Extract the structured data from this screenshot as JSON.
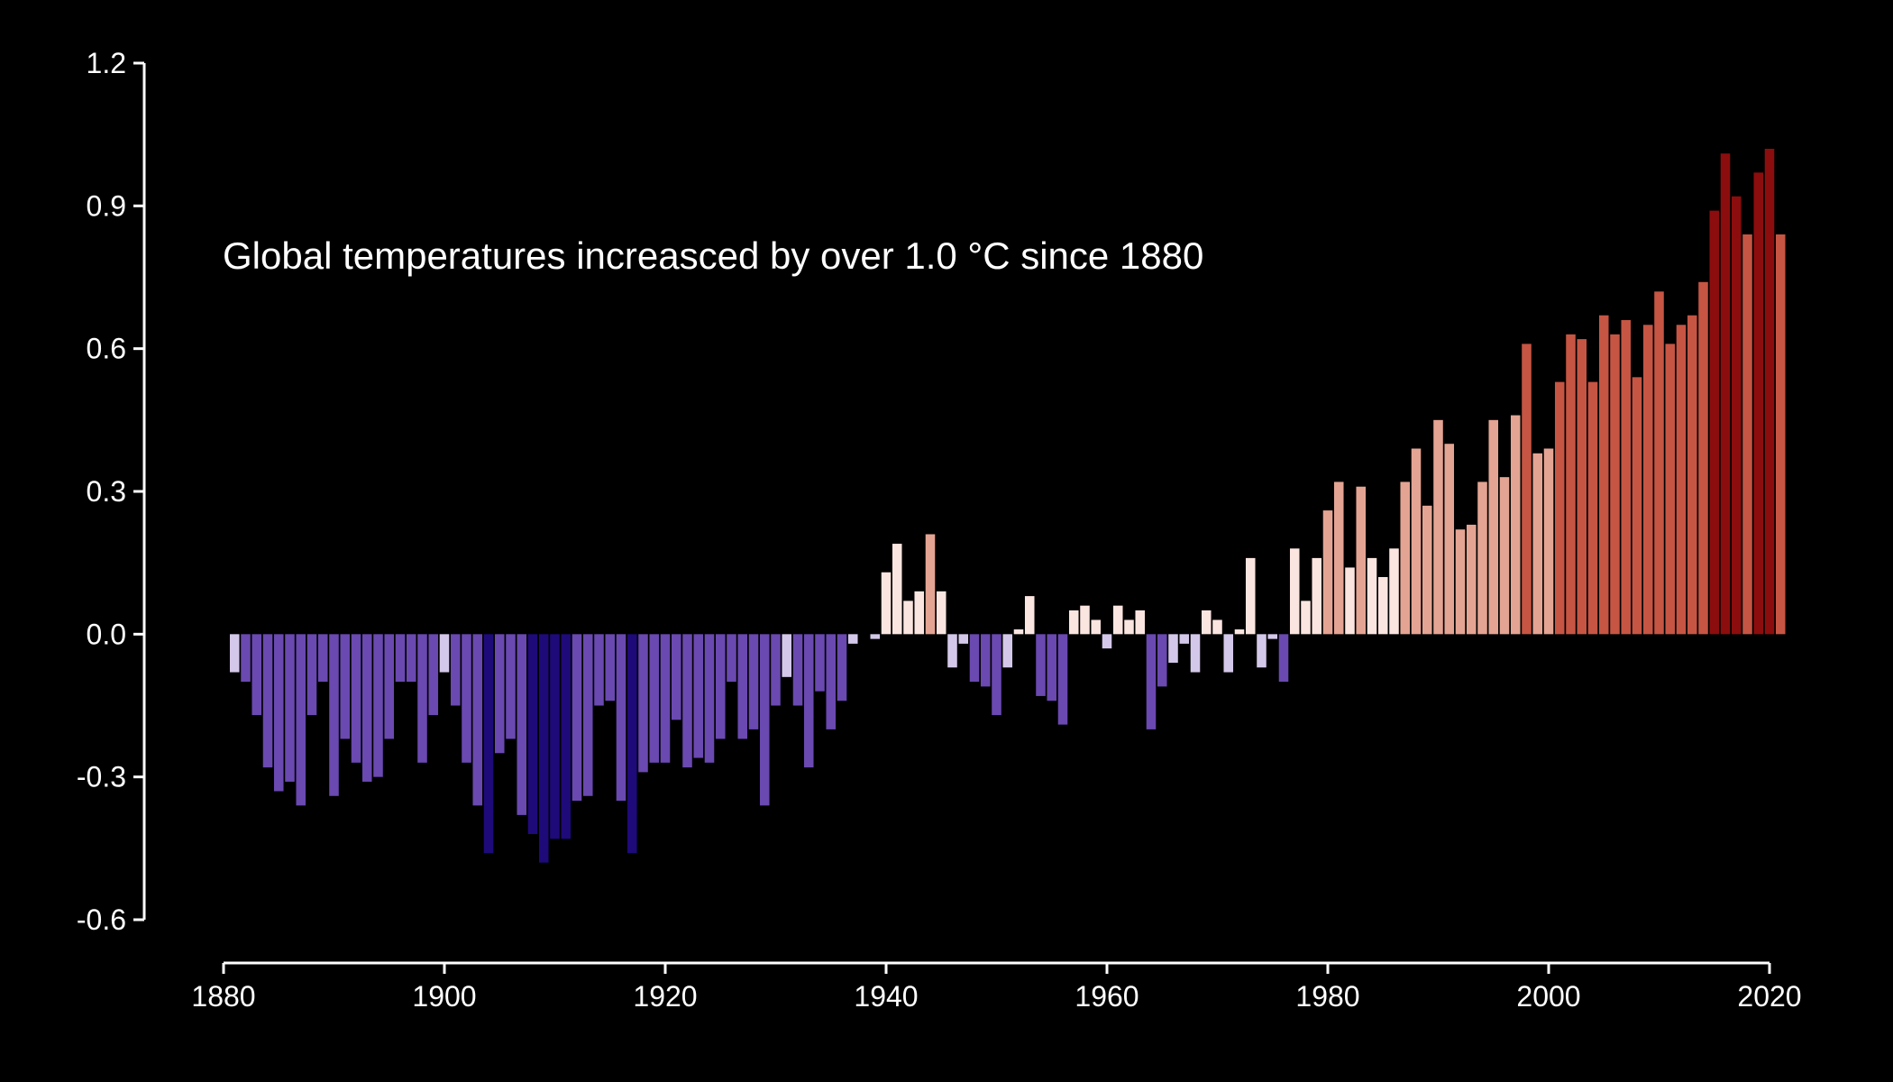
{
  "chart_data": {
    "type": "bar",
    "title": "",
    "xlabel": "",
    "ylabel": "",
    "annotation": "Global temperatures increasced by over 1.0 °C since 1880",
    "xlim": [
      1880,
      2020
    ],
    "ylim": [
      -0.6,
      1.2
    ],
    "xticks": [
      "1880",
      "1900",
      "1920",
      "1940",
      "1960",
      "1980",
      "2000",
      "2020"
    ],
    "yticks": [
      "1.2",
      "0.9",
      "0.6",
      "0.3",
      "0.0",
      "-0.3",
      "-0.6"
    ],
    "grid": false,
    "legend": "none",
    "colors": {
      "background": "#000000",
      "axis": "#ffffff",
      "cold_extreme": "#1f0a7a",
      "cold_medium": "#6a49b0",
      "cold_light": "#d4c8ea",
      "warm_light": "#fbe5e0",
      "warm_medium": "#e4a493",
      "warm_strong": "#c65544",
      "warm_extreme": "#8c0d0d"
    },
    "x": [
      1881,
      1882,
      1883,
      1884,
      1885,
      1886,
      1887,
      1888,
      1889,
      1890,
      1891,
      1892,
      1893,
      1894,
      1895,
      1896,
      1897,
      1898,
      1899,
      1900,
      1901,
      1902,
      1903,
      1904,
      1905,
      1906,
      1907,
      1908,
      1909,
      1910,
      1911,
      1912,
      1913,
      1914,
      1915,
      1916,
      1917,
      1918,
      1919,
      1920,
      1921,
      1922,
      1923,
      1924,
      1925,
      1926,
      1927,
      1928,
      1929,
      1930,
      1931,
      1932,
      1933,
      1934,
      1935,
      1936,
      1937,
      1938,
      1939,
      1940,
      1941,
      1942,
      1943,
      1944,
      1945,
      1946,
      1947,
      1948,
      1949,
      1950,
      1951,
      1952,
      1953,
      1954,
      1955,
      1956,
      1957,
      1958,
      1959,
      1960,
      1961,
      1962,
      1963,
      1964,
      1965,
      1966,
      1967,
      1968,
      1969,
      1970,
      1971,
      1972,
      1973,
      1974,
      1975,
      1976,
      1977,
      1978,
      1979,
      1980,
      1981,
      1982,
      1983,
      1984,
      1985,
      1986,
      1987,
      1988,
      1989,
      1990,
      1991,
      1992,
      1993,
      1994,
      1995,
      1996,
      1997,
      1998,
      1999,
      2000,
      2001,
      2002,
      2003,
      2004,
      2005,
      2006,
      2007,
      2008,
      2009,
      2010,
      2011,
      2012,
      2013,
      2014,
      2015,
      2016,
      2017,
      2018,
      2019,
      2020,
      2021
    ],
    "values": [
      -0.08,
      -0.1,
      -0.17,
      -0.28,
      -0.33,
      -0.31,
      -0.36,
      -0.17,
      -0.1,
      -0.34,
      -0.22,
      -0.27,
      -0.31,
      -0.3,
      -0.22,
      -0.1,
      -0.1,
      -0.27,
      -0.17,
      -0.08,
      -0.15,
      -0.27,
      -0.36,
      -0.46,
      -0.25,
      -0.22,
      -0.38,
      -0.42,
      -0.48,
      -0.43,
      -0.43,
      -0.35,
      -0.34,
      -0.15,
      -0.14,
      -0.35,
      -0.46,
      -0.29,
      -0.27,
      -0.27,
      -0.18,
      -0.28,
      -0.26,
      -0.27,
      -0.22,
      -0.1,
      -0.22,
      -0.2,
      -0.36,
      -0.15,
      -0.09,
      -0.15,
      -0.28,
      -0.12,
      -0.2,
      -0.14,
      -0.02,
      0.0,
      -0.01,
      0.13,
      0.19,
      0.07,
      0.09,
      0.21,
      0.09,
      -0.07,
      -0.02,
      -0.1,
      -0.11,
      -0.17,
      -0.07,
      0.01,
      0.08,
      -0.13,
      -0.14,
      -0.19,
      0.05,
      0.06,
      0.03,
      -0.03,
      0.06,
      0.03,
      0.05,
      -0.2,
      -0.11,
      -0.06,
      -0.02,
      -0.08,
      0.05,
      0.03,
      -0.08,
      0.01,
      0.16,
      -0.07,
      -0.01,
      -0.1,
      0.18,
      0.07,
      0.16,
      0.26,
      0.32,
      0.14,
      0.31,
      0.16,
      0.12,
      0.18,
      0.32,
      0.39,
      0.27,
      0.45,
      0.4,
      0.22,
      0.23,
      0.32,
      0.45,
      0.33,
      0.46,
      0.61,
      0.38,
      0.39,
      0.53,
      0.63,
      0.62,
      0.53,
      0.67,
      0.63,
      0.66,
      0.54,
      0.65,
      0.72,
      0.61,
      0.65,
      0.67,
      0.74,
      0.89,
      1.01,
      0.92,
      0.84,
      0.97,
      1.02,
      0.84
    ]
  }
}
